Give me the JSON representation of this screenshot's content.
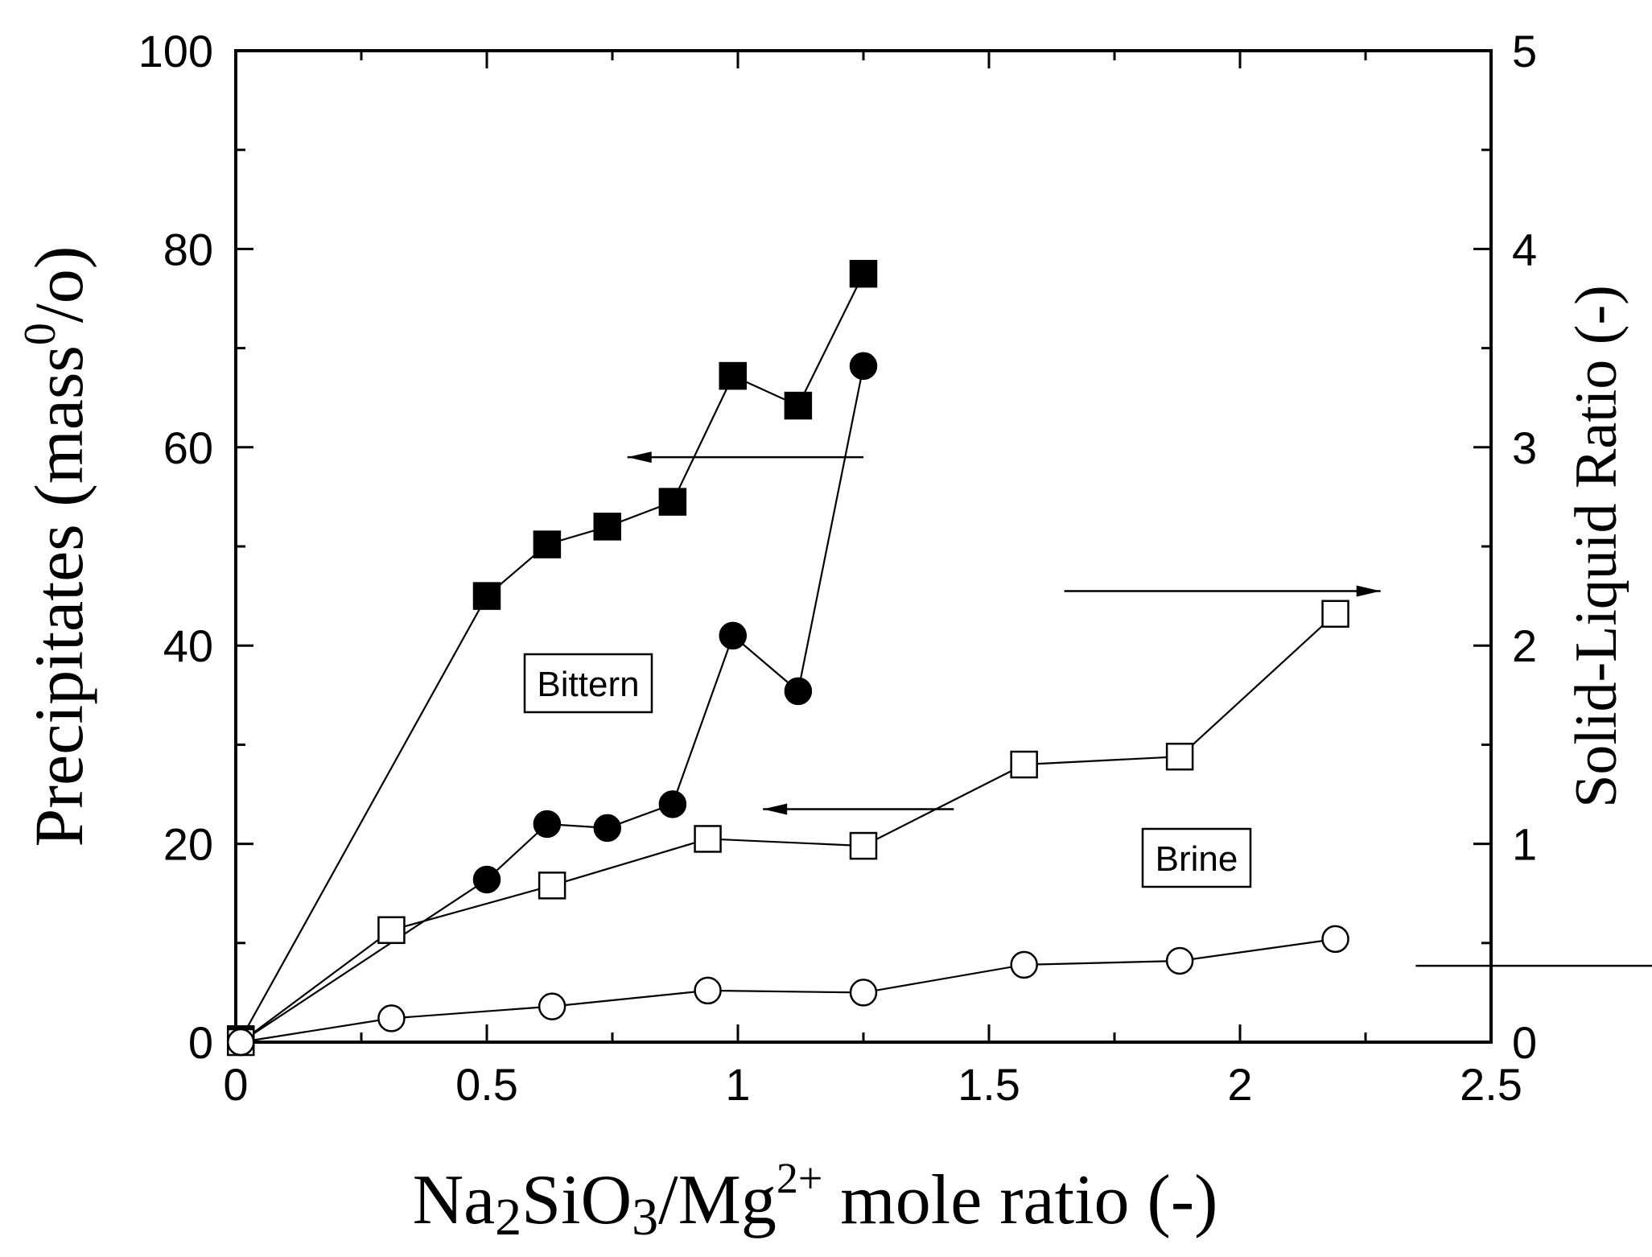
{
  "chart_data": {
    "type": "scatter",
    "x_axis": {
      "title_parts": {
        "base1": "Na",
        "sub1": "2",
        "base2": "SiO",
        "sub2": "3",
        "base3": "/Mg",
        "sup": "2+",
        "base4": " mole ratio  (-)"
      },
      "range": [
        0,
        2.5
      ],
      "ticks": [
        0,
        0.5,
        1,
        1.5,
        2,
        2.5
      ],
      "tick_labels": [
        "0",
        "0.5",
        "1",
        "1.5",
        "2",
        "2.5"
      ]
    },
    "y_left": {
      "title_parts": {
        "base": "Precipitates (mass",
        "sup": "0",
        "end": "/o)"
      },
      "range": [
        0,
        100
      ],
      "ticks": [
        0,
        20,
        40,
        60,
        80,
        100
      ],
      "tick_labels": [
        "0",
        "20",
        "40",
        "60",
        "80",
        "100"
      ]
    },
    "y_right": {
      "title": "Solid-Liquid Ratio (-)",
      "range": [
        0,
        5
      ],
      "ticks": [
        0,
        1,
        2,
        3,
        4,
        5
      ],
      "tick_labels": [
        "0",
        "1",
        "2",
        "3",
        "4",
        "5"
      ]
    },
    "series": [
      {
        "name": "Bittern precipitates",
        "axis": "left",
        "marker": "square",
        "filled": true,
        "x": [
          0.01,
          0.5,
          0.62,
          0.74,
          0.87,
          0.99,
          1.12,
          1.25
        ],
        "y": [
          0.3,
          45.0,
          50.2,
          52.0,
          54.5,
          67.2,
          64.2,
          77.5
        ]
      },
      {
        "name": "Bittern solid-liquid ratio",
        "axis": "right",
        "marker": "circle",
        "filled": true,
        "x": [
          0.01,
          0.5,
          0.62,
          0.74,
          0.87,
          0.99,
          1.12,
          1.25
        ],
        "y": [
          0.0,
          0.82,
          1.1,
          1.08,
          1.2,
          2.05,
          1.77,
          3.41
        ]
      },
      {
        "name": "Brine precipitates",
        "axis": "left",
        "marker": "square",
        "filled": false,
        "x": [
          0.01,
          0.31,
          0.63,
          0.94,
          1.25,
          1.57,
          1.88,
          2.19
        ],
        "y": [
          0.0,
          11.3,
          15.8,
          20.5,
          19.8,
          28.0,
          28.8,
          43.2
        ]
      },
      {
        "name": "Brine solid-liquid ratio",
        "axis": "right",
        "marker": "circle",
        "filled": false,
        "x": [
          0.01,
          0.31,
          0.63,
          0.94,
          1.25,
          1.57,
          1.88,
          2.19
        ],
        "y": [
          0.0,
          0.12,
          0.18,
          0.26,
          0.25,
          0.39,
          0.41,
          0.52
        ]
      }
    ],
    "annotations": {
      "bittern_label": "Bittern",
      "brine_label": "Brine"
    },
    "arrows": [
      {
        "target": "left",
        "x": [
          1.25,
          0.78
        ],
        "y": [
          59,
          59
        ]
      },
      {
        "target": "right",
        "x": [
          1.65,
          2.28
        ],
        "y": [
          45.5,
          45.5
        ]
      },
      {
        "target": "left",
        "x": [
          1.43,
          1.05
        ],
        "y": [
          23.5,
          23.5
        ]
      },
      {
        "target": "right",
        "x": [
          2.35,
          2.94
        ],
        "y": [
          7.7,
          7.7
        ]
      }
    ]
  }
}
